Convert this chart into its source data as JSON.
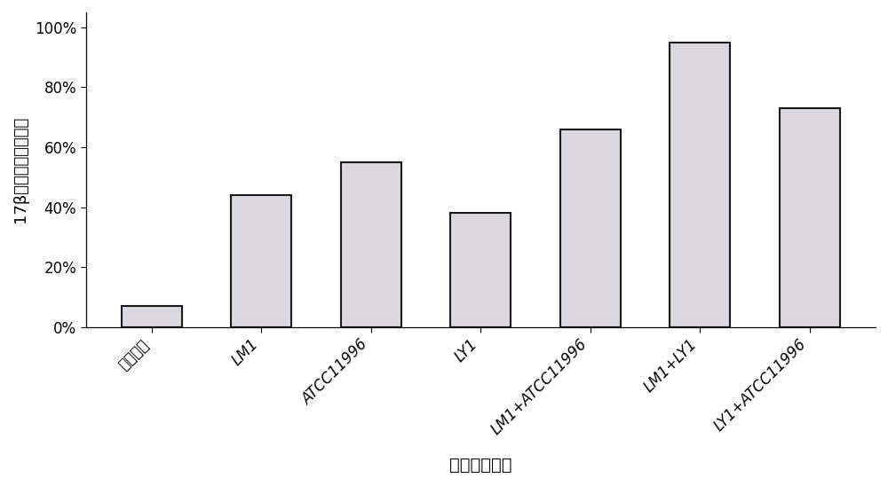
{
  "categories": [
    "无菌对照",
    "LM1",
    "ATCC11996",
    "LY1",
    "LM1+ATCC11996",
    "LM1+LY1",
    "LY1+ATCC11996"
  ],
  "values": [
    0.07,
    0.44,
    0.55,
    0.38,
    0.66,
    0.95,
    0.73
  ],
  "bar_facecolor": "#d8d0d8",
  "bar_edgecolor": "#1a1a1a",
  "bar_linewidth": 1.5,
  "background_color": "#ffffff",
  "ylabel": "17β－雌二醇的降解率",
  "xlabel": "单一或混合菌",
  "yticks": [
    0.0,
    0.2,
    0.4,
    0.6,
    0.8,
    1.0
  ],
  "ytick_labels": [
    "0%",
    "20%",
    "40%",
    "60%",
    "80%",
    "100%"
  ],
  "ylim": [
    0,
    1.05
  ],
  "bar_width": 0.55,
  "tick_fontsize": 12,
  "xlabel_fontsize": 14,
  "ylabel_fontsize": 13
}
